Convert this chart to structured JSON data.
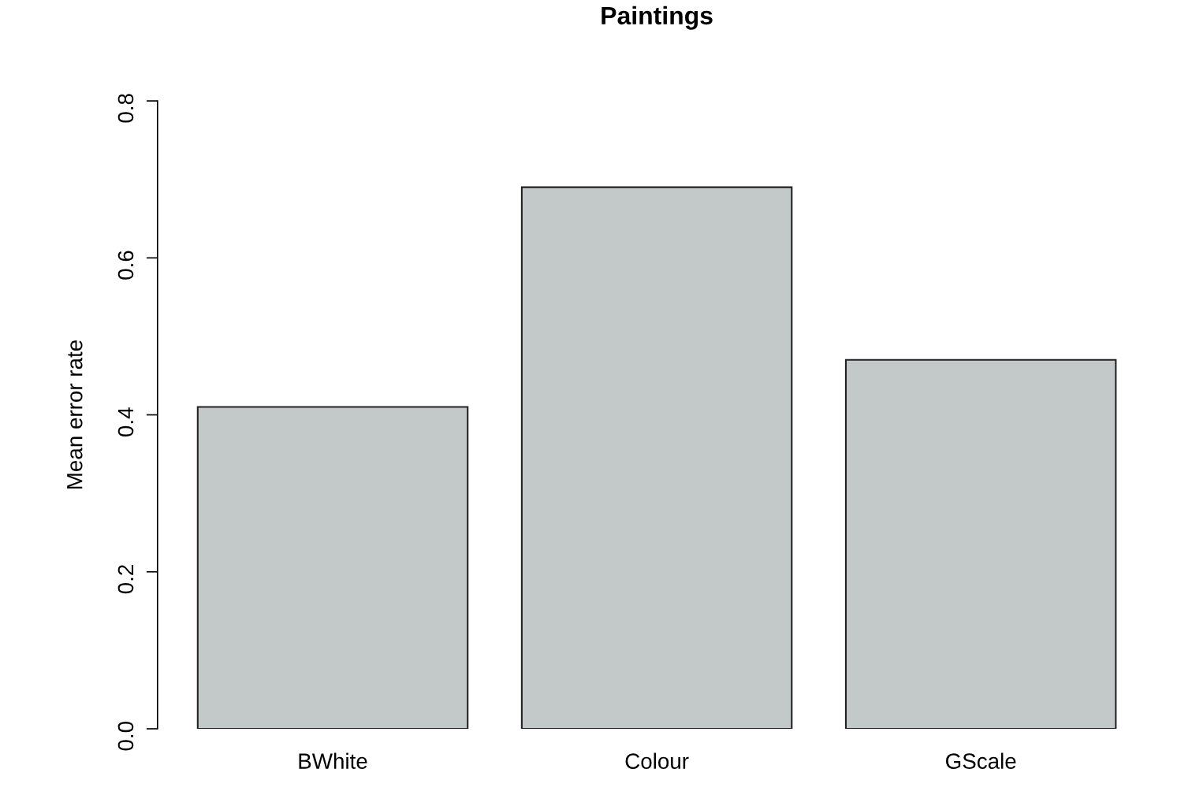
{
  "chart_data": {
    "type": "bar",
    "title": "Paintings",
    "ylabel": "Mean error rate",
    "categories": [
      "BWhite",
      "Colour",
      "GScale"
    ],
    "values": [
      0.41,
      0.69,
      0.47
    ],
    "color": "#c3c9c8",
    "ylim": [
      0,
      0.8
    ],
    "yticks": [
      {
        "value": 0,
        "label": "0.0"
      },
      {
        "value": 0.2,
        "label": "0.2"
      },
      {
        "value": 0.4,
        "label": "0.4"
      },
      {
        "value": 0.6,
        "label": "0.6"
      },
      {
        "value": 0.8,
        "label": "0.8"
      }
    ],
    "grid": false,
    "legend": false
  }
}
